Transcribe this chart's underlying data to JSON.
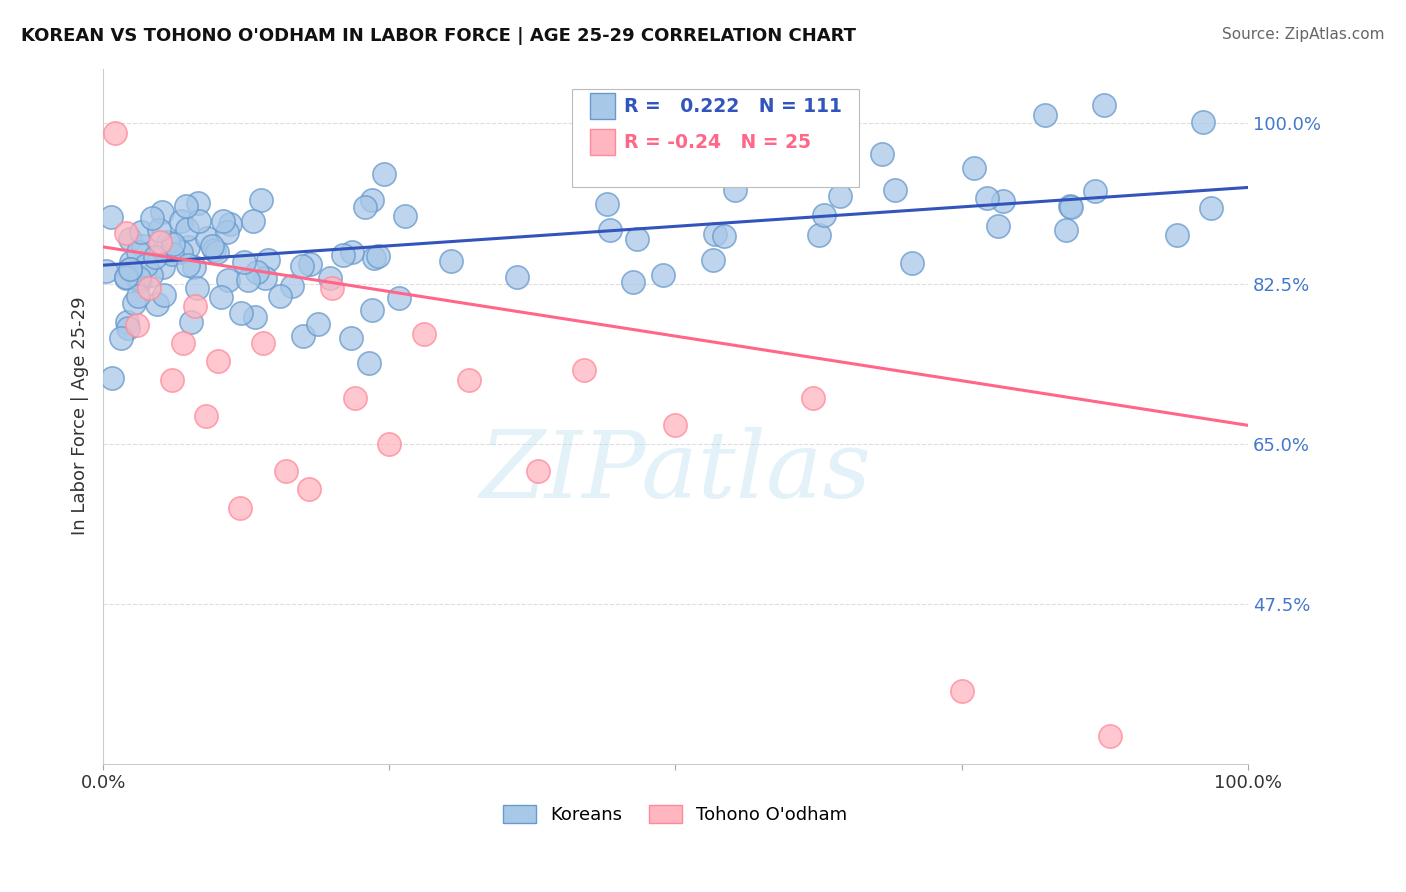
{
  "title": "KOREAN VS TOHONO O'ODHAM IN LABOR FORCE | AGE 25-29 CORRELATION CHART",
  "source": "Source: ZipAtlas.com",
  "ylabel": "In Labor Force | Age 25-29",
  "xlim": [
    0.0,
    1.0
  ],
  "ylim": [
    0.3,
    1.06
  ],
  "yticks": [
    0.475,
    0.65,
    0.825,
    1.0
  ],
  "ytick_labels": [
    "47.5%",
    "65.0%",
    "82.5%",
    "100.0%"
  ],
  "korean_R": 0.222,
  "korean_N": 111,
  "tohono_R": -0.24,
  "tohono_N": 25,
  "korean_color": "#A8C8E8",
  "korean_edge_color": "#6699CC",
  "tohono_color": "#FFB6C1",
  "tohono_edge_color": "#FF8899",
  "korean_line_color": "#3355BB",
  "tohono_line_color": "#FF6688",
  "ytick_color": "#4477CC",
  "background_color": "#FFFFFF",
  "grid_color": "#DDDDDD",
  "watermark": "ZIPatlas",
  "korean_line_start": 0.845,
  "korean_line_end": 0.93,
  "tohono_line_start": 0.865,
  "tohono_line_end": 0.67
}
